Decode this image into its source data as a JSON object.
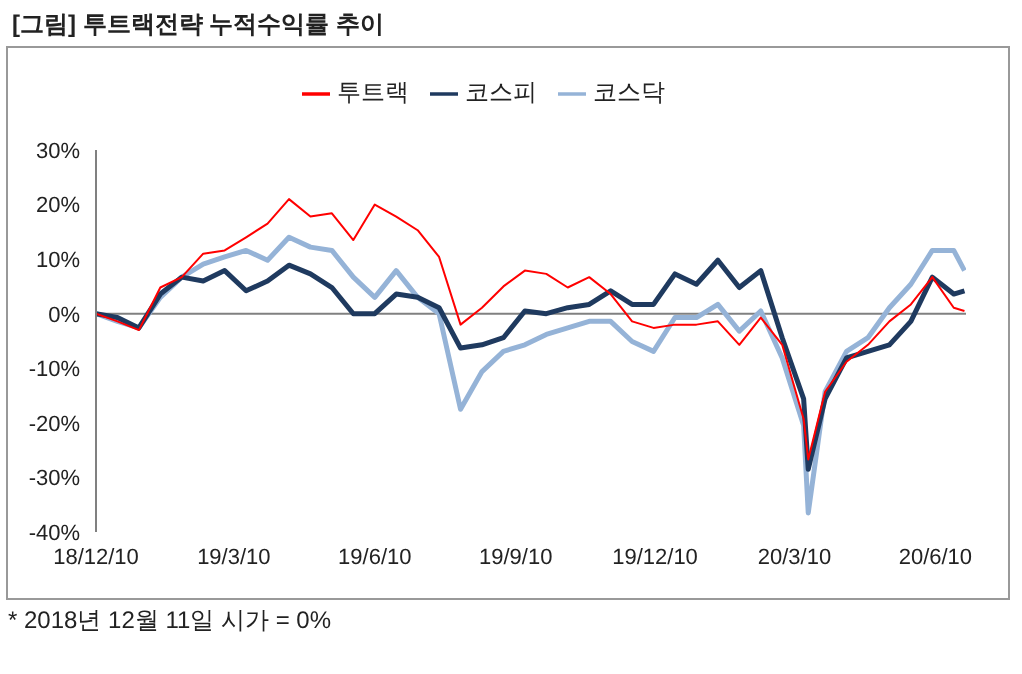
{
  "chart_data": {
    "type": "line",
    "title": "[그림] 투트랙전략 누적수익률 추이",
    "annotations": [
      "* 2018년 12월 11일 시가 = 0%"
    ],
    "x": [
      "2018-12-10",
      "2018-12-24",
      "2019-01-07",
      "2019-01-21",
      "2019-02-04",
      "2019-02-18",
      "2019-03-04",
      "2019-03-18",
      "2019-04-01",
      "2019-04-15",
      "2019-04-29",
      "2019-05-13",
      "2019-05-27",
      "2019-06-10",
      "2019-06-24",
      "2019-07-08",
      "2019-07-22",
      "2019-08-05",
      "2019-08-19",
      "2019-09-02",
      "2019-09-16",
      "2019-09-30",
      "2019-10-14",
      "2019-10-28",
      "2019-11-11",
      "2019-11-25",
      "2019-12-09",
      "2019-12-23",
      "2020-01-06",
      "2020-01-20",
      "2020-02-03",
      "2020-02-17",
      "2020-03-02",
      "2020-03-16",
      "2020-03-19",
      "2020-03-30",
      "2020-04-13",
      "2020-04-27",
      "2020-05-11",
      "2020-05-25",
      "2020-06-08",
      "2020-06-22",
      "2020-06-29"
    ],
    "series": [
      {
        "name": "투트랙",
        "color": "#ff0000",
        "values": [
          0,
          -1.4,
          -3,
          4.8,
          6.7,
          11,
          11.6,
          14,
          16.5,
          21,
          17.8,
          18.4,
          13.5,
          20,
          17.8,
          15.3,
          10.4,
          -2,
          1.1,
          5,
          7.9,
          7.3,
          4.8,
          6.7,
          3.6,
          -1.4,
          -2.6,
          -2,
          -2,
          -1.4,
          -5.7,
          -0.7,
          -5.7,
          -19.3,
          -26.7,
          -14.3,
          -8.8,
          -5.7,
          -1.4,
          1.7,
          6.7,
          1.1,
          0.5
        ]
      },
      {
        "name": "코스피",
        "color": "#1f3a5f",
        "values": [
          0,
          -0.7,
          -2.6,
          3.6,
          6.7,
          6,
          7.9,
          4.2,
          6,
          8.9,
          7.3,
          4.8,
          0,
          0,
          3.6,
          3,
          1.1,
          -6.3,
          -5.7,
          -4.4,
          0.5,
          0,
          1.1,
          1.7,
          4.2,
          1.7,
          1.7,
          7.3,
          5.4,
          9.8,
          4.8,
          7.9,
          -4.4,
          -15.6,
          -28.5,
          -15.6,
          -8.1,
          -6.9,
          -5.7,
          -1.4,
          6.7,
          3.6,
          4.2
        ]
      },
      {
        "name": "코스닥",
        "color": "#95b3d7",
        "values": [
          0,
          -1.4,
          -2.6,
          3,
          6.7,
          9.1,
          10.4,
          11.6,
          9.8,
          14,
          12.2,
          11.6,
          6.7,
          3,
          7.9,
          3,
          0,
          -17.5,
          -10.6,
          -6.9,
          -5.7,
          -3.8,
          -2.6,
          -1.4,
          -1.4,
          -5.1,
          -6.9,
          -0.7,
          -0.7,
          1.7,
          -3.2,
          0.5,
          -8.1,
          -20.5,
          -36.5,
          -14.3,
          -6.9,
          -4.4,
          1.1,
          5.4,
          11.6,
          11.6,
          7.9
        ]
      }
    ],
    "xlim": [
      "2018-12-10",
      "2020-06-30"
    ],
    "xticks": [
      {
        "value": "2018-12-10",
        "label": "18/12/10"
      },
      {
        "value": "2019-03-10",
        "label": "19/3/10"
      },
      {
        "value": "2019-06-10",
        "label": "19/6/10"
      },
      {
        "value": "2019-09-10",
        "label": "19/9/10"
      },
      {
        "value": "2019-12-10",
        "label": "19/12/10"
      },
      {
        "value": "2020-03-10",
        "label": "20/3/10"
      },
      {
        "value": "2020-06-10",
        "label": "20/6/10"
      }
    ],
    "ylim": [
      -40,
      30
    ],
    "yticks": [
      {
        "value": -40,
        "label": "-40%"
      },
      {
        "value": -30,
        "label": "-30%"
      },
      {
        "value": -20,
        "label": "-20%"
      },
      {
        "value": -10,
        "label": "-10%"
      },
      {
        "value": 0,
        "label": "0%"
      },
      {
        "value": 10,
        "label": "10%"
      },
      {
        "value": 20,
        "label": "20%"
      },
      {
        "value": 30,
        "label": "30%"
      }
    ],
    "ref_lines": [
      {
        "axis": "y",
        "value": 0,
        "color": "#808080"
      }
    ],
    "grid": false,
    "legend": "top",
    "marker": "none",
    "line_style": "solid"
  }
}
